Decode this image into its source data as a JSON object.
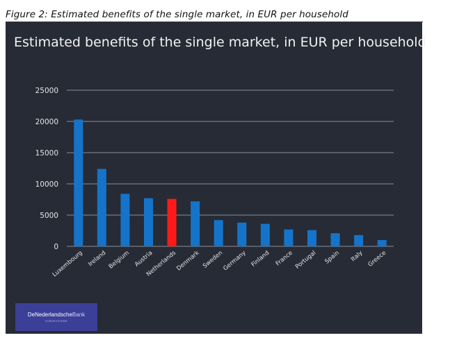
{
  "figure_caption": "Figure 2: Estimated benefits of the single market, in EUR per household",
  "logo": {
    "name_part1": "DeNederlandsche",
    "name_part2": "Bank",
    "subtitle": "EUROSYSTEEM"
  },
  "chart_data": {
    "type": "bar",
    "title": "Estimated benefits of the single market, in EUR per household",
    "xlabel": "",
    "ylabel": "",
    "ylim": [
      0,
      25000
    ],
    "yticks": [
      0,
      5000,
      10000,
      15000,
      20000,
      25000
    ],
    "grid": true,
    "categories": [
      "Luxembourg",
      "Ireland",
      "Belgium",
      "Austria",
      "Netherlands",
      "Denmark",
      "Sweden",
      "Germany",
      "Finland",
      "France",
      "Portugal",
      "Spain",
      "Italy",
      "Greece"
    ],
    "values": [
      20300,
      12400,
      8400,
      7700,
      7600,
      7200,
      4200,
      3800,
      3600,
      2700,
      2600,
      2100,
      1800,
      1000
    ],
    "colors": {
      "default": "#1574c9",
      "highlight": "#ff1a1a",
      "highlight_category": "Netherlands",
      "grid": "#8a8f99",
      "tick_text": "#e6e6e6",
      "background": "#262b36"
    }
  }
}
